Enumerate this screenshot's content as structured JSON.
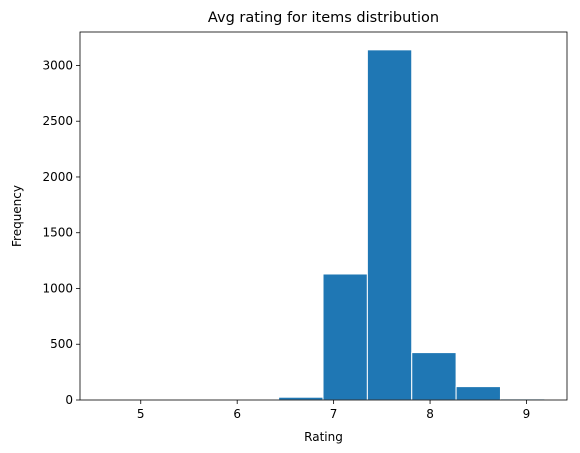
{
  "chart_data": {
    "type": "bar",
    "title": "Avg rating for items distribution",
    "xlabel": "Rating",
    "ylabel": "Frequency",
    "bins": [
      {
        "x0": 4.6,
        "x1": 5.06,
        "count": 1
      },
      {
        "x0": 5.06,
        "x1": 5.52,
        "count": 0
      },
      {
        "x0": 5.52,
        "x1": 5.98,
        "count": 0
      },
      {
        "x0": 5.98,
        "x1": 6.43,
        "count": 2
      },
      {
        "x0": 6.43,
        "x1": 6.89,
        "count": 25
      },
      {
        "x0": 6.89,
        "x1": 7.35,
        "count": 1130
      },
      {
        "x0": 7.35,
        "x1": 7.81,
        "count": 3140
      },
      {
        "x0": 7.81,
        "x1": 8.27,
        "count": 425
      },
      {
        "x0": 8.27,
        "x1": 8.73,
        "count": 120
      },
      {
        "x0": 8.73,
        "x1": 9.19,
        "count": 10
      }
    ],
    "xlim": [
      4.37,
      9.42
    ],
    "ylim": [
      0,
      3300
    ],
    "xticks": [
      5,
      6,
      7,
      8,
      9
    ],
    "yticks": [
      0,
      500,
      1000,
      1500,
      2000,
      2500,
      3000
    ],
    "bar_color": "#1f77b4",
    "edge_color": "#ffffff",
    "grid": false
  }
}
